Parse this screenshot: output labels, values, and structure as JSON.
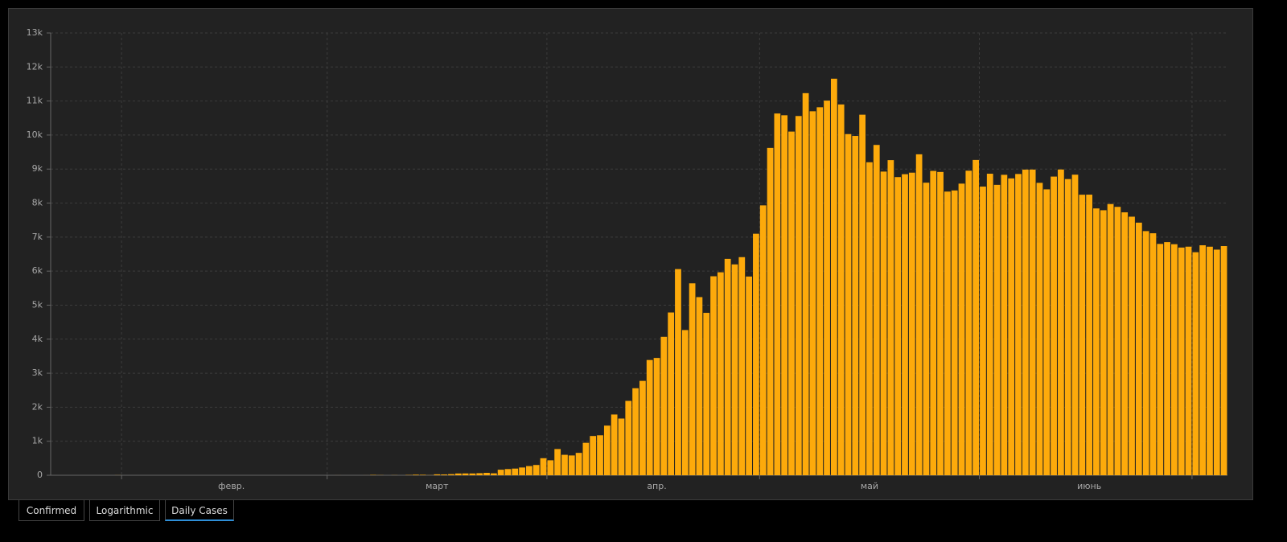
{
  "chart_data": {
    "type": "bar",
    "categories": [
      null,
      null,
      null,
      null,
      null,
      null,
      null,
      null,
      null,
      null,
      null,
      null,
      null,
      null,
      null,
      null,
      null,
      null,
      null,
      null,
      null,
      null,
      null,
      null,
      null,
      "февр.",
      null,
      null,
      null,
      null,
      null,
      null,
      null,
      null,
      null,
      null,
      null,
      null,
      null,
      null,
      null,
      null,
      null,
      null,
      null,
      null,
      null,
      null,
      null,
      null,
      null,
      null,
      null,
      null,
      "март",
      null,
      null,
      null,
      null,
      null,
      null,
      null,
      null,
      null,
      null,
      null,
      null,
      null,
      null,
      null,
      null,
      null,
      null,
      null,
      null,
      null,
      null,
      null,
      null,
      null,
      null,
      null,
      null,
      null,
      null,
      "апр.",
      null,
      null,
      null,
      null,
      null,
      null,
      null,
      null,
      null,
      null,
      null,
      null,
      null,
      null,
      null,
      null,
      null,
      null,
      null,
      null,
      null,
      null,
      null,
      null,
      null,
      null,
      null,
      null,
      null,
      "май",
      null,
      null,
      null,
      null,
      null,
      null,
      null,
      null,
      null,
      null,
      null,
      null,
      null,
      null,
      null,
      null,
      null,
      null,
      null,
      null,
      null,
      null,
      null,
      null,
      null,
      null,
      null,
      null,
      null,
      null,
      "июнь",
      null,
      null,
      null,
      null,
      null,
      null,
      null,
      null,
      null,
      null,
      null,
      null,
      null,
      null,
      null,
      null,
      null,
      null,
      null
    ],
    "values": [
      0,
      0,
      0,
      0,
      0,
      0,
      0,
      0,
      0,
      2,
      0,
      0,
      0,
      0,
      0,
      0,
      0,
      0,
      0,
      0,
      0,
      0,
      0,
      0,
      0,
      0,
      0,
      0,
      0,
      0,
      0,
      0,
      0,
      0,
      0,
      0,
      0,
      0,
      0,
      0,
      1,
      0,
      0,
      0,
      1,
      9,
      4,
      0,
      3,
      0,
      8,
      17,
      14,
      4,
      27,
      24,
      33,
      52,
      54,
      53,
      61,
      71,
      57,
      163,
      182,
      196,
      228,
      270,
      302,
      501,
      440,
      771,
      601,
      582,
      658,
      954,
      1154,
      1175,
      1459,
      1786,
      1667,
      2186,
      2558,
      2774,
      3388,
      3448,
      4070,
      4785,
      6060,
      4268,
      5642,
      5236,
      4774,
      5849,
      5966,
      6361,
      6198,
      6411,
      5841,
      7099,
      7933,
      9623,
      10633,
      10581,
      10102,
      10559,
      11231,
      10699,
      10817,
      11012,
      11656,
      10899,
      10028,
      9974,
      10598,
      9200,
      9709,
      8926,
      9263,
      8764,
      8849,
      8894,
      9434,
      8599,
      8946,
      8915,
      8338,
      8371,
      8572,
      8952,
      9268,
      8485,
      8863,
      8536,
      8831,
      8726,
      8855,
      8984,
      8985,
      8595,
      8404,
      8779,
      8987,
      8706,
      8835,
      8246,
      8248,
      7843,
      7790,
      7972,
      7889,
      7728,
      7600,
      7425,
      7176,
      7113,
      6800,
      6852,
      6791,
      6693,
      6719,
      6556,
      6760,
      6718,
      6632,
      6736
    ],
    "color": "#fdaa0b",
    "ylim": [
      0,
      13000
    ],
    "yticks": [
      0,
      {
        "value": 1000,
        "label": "1k"
      },
      {
        "value": 2000,
        "label": "2k"
      },
      {
        "value": 3000,
        "label": "3k"
      },
      {
        "value": 4000,
        "label": "4k"
      },
      {
        "value": 5000,
        "label": "5k"
      },
      {
        "value": 6000,
        "label": "6k"
      },
      {
        "value": 7000,
        "label": "7k"
      },
      {
        "value": 8000,
        "label": "8k"
      },
      {
        "value": 9000,
        "label": "9k"
      },
      {
        "value": 10000,
        "label": "10k"
      },
      {
        "value": 11000,
        "label": "11k"
      },
      {
        "value": 12000,
        "label": "12k"
      },
      {
        "value": 13000,
        "label": "13k"
      }
    ],
    "grid": true
  },
  "tabs": [
    "Confirmed",
    "Logarithmic",
    "Daily Cases"
  ]
}
